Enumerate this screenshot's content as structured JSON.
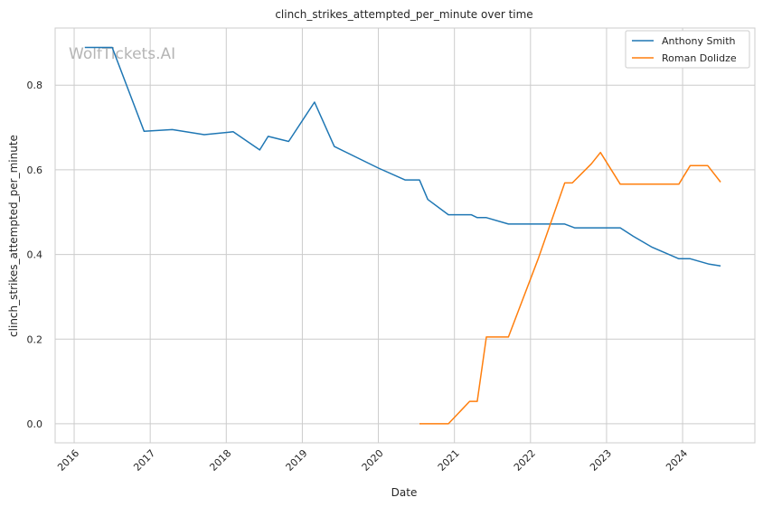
{
  "chart_data": {
    "type": "line",
    "title": "clinch_strikes_attempted_per_minute over time",
    "xlabel": "Date",
    "ylabel": "clinch_strikes_attempted_per_minute",
    "xlim": [
      2015.75,
      2024.95
    ],
    "ylim": [
      -0.045,
      0.935
    ],
    "x_ticks": [
      2016,
      2017,
      2018,
      2019,
      2020,
      2021,
      2022,
      2023,
      2024
    ],
    "y_ticks": [
      0.0,
      0.2,
      0.4,
      0.6,
      0.8
    ],
    "y_tick_labels": [
      "0.0",
      "0.2",
      "0.4",
      "0.6",
      "0.8"
    ],
    "grid": true,
    "legend_position": "top-right",
    "watermark": "WolfTickets.AI",
    "series": [
      {
        "name": "Anthony Smith",
        "color": "#1f77b4",
        "points": [
          [
            2016.14,
            0.889
          ],
          [
            2016.5,
            0.889
          ],
          [
            2016.92,
            0.691
          ],
          [
            2017.29,
            0.695
          ],
          [
            2017.71,
            0.683
          ],
          [
            2018.09,
            0.69
          ],
          [
            2018.44,
            0.647
          ],
          [
            2018.55,
            0.679
          ],
          [
            2018.82,
            0.667
          ],
          [
            2019.16,
            0.76
          ],
          [
            2019.42,
            0.655
          ],
          [
            2020.0,
            0.604
          ],
          [
            2020.35,
            0.576
          ],
          [
            2020.54,
            0.576
          ],
          [
            2020.65,
            0.53
          ],
          [
            2020.92,
            0.494
          ],
          [
            2021.22,
            0.494
          ],
          [
            2021.3,
            0.487
          ],
          [
            2021.42,
            0.487
          ],
          [
            2021.71,
            0.472
          ],
          [
            2022.1,
            0.472
          ],
          [
            2022.45,
            0.472
          ],
          [
            2022.58,
            0.463
          ],
          [
            2023.0,
            0.463
          ],
          [
            2023.18,
            0.463
          ],
          [
            2023.35,
            0.443
          ],
          [
            2023.6,
            0.417
          ],
          [
            2023.95,
            0.39
          ],
          [
            2024.1,
            0.39
          ],
          [
            2024.35,
            0.377
          ],
          [
            2024.5,
            0.373
          ]
        ]
      },
      {
        "name": "Roman Dolidze",
        "color": "#ff7f0e",
        "points": [
          [
            2020.54,
            0.0
          ],
          [
            2020.92,
            0.0
          ],
          [
            2021.2,
            0.053
          ],
          [
            2021.3,
            0.053
          ],
          [
            2021.42,
            0.205
          ],
          [
            2021.71,
            0.205
          ],
          [
            2022.1,
            0.389
          ],
          [
            2022.45,
            0.569
          ],
          [
            2022.55,
            0.569
          ],
          [
            2022.8,
            0.614
          ],
          [
            2022.92,
            0.641
          ],
          [
            2023.18,
            0.566
          ],
          [
            2023.6,
            0.566
          ],
          [
            2023.95,
            0.566
          ],
          [
            2024.1,
            0.61
          ],
          [
            2024.33,
            0.61
          ],
          [
            2024.5,
            0.571
          ]
        ]
      }
    ]
  }
}
